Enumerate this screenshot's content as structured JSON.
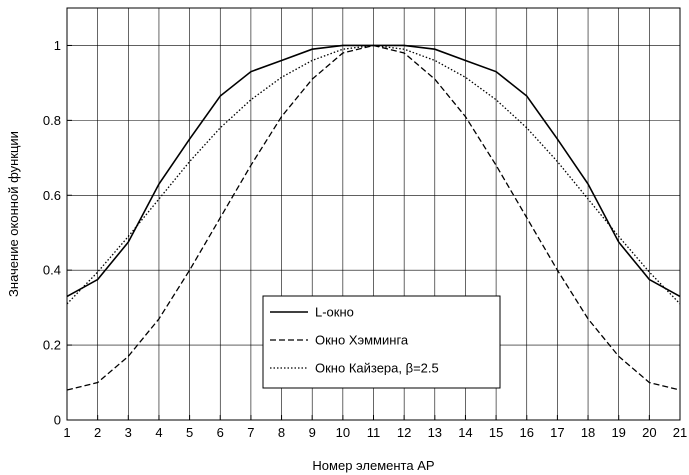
{
  "chart_data": {
    "type": "line",
    "title": "",
    "xlabel": "Номер элемента АР",
    "ylabel": "Значение оконной функции",
    "xlim": [
      1,
      21
    ],
    "ylim": [
      0,
      1.1
    ],
    "xticks": [
      1,
      2,
      3,
      4,
      5,
      6,
      7,
      8,
      9,
      10,
      11,
      12,
      13,
      14,
      15,
      16,
      17,
      18,
      19,
      20,
      21
    ],
    "yticks": [
      0,
      0.2,
      0.4,
      0.6,
      0.8,
      1
    ],
    "ytick_labels": [
      "0",
      "0.2",
      "0.4",
      "0.6",
      "0.8",
      "1"
    ],
    "grid": true,
    "legend_position": "bottom-center",
    "x": [
      1,
      2,
      3,
      4,
      5,
      6,
      7,
      8,
      9,
      10,
      11,
      12,
      13,
      14,
      15,
      16,
      17,
      18,
      19,
      20,
      21
    ],
    "series": [
      {
        "name": "L-окно",
        "style": "solid",
        "values": [
          0.33,
          0.375,
          0.475,
          0.63,
          0.75,
          0.865,
          0.93,
          0.96,
          0.99,
          1.0,
          1.0,
          1.0,
          0.99,
          0.96,
          0.93,
          0.865,
          0.75,
          0.63,
          0.475,
          0.375,
          0.33
        ]
      },
      {
        "name": "Окно Хэмминга",
        "style": "dashed",
        "values": [
          0.08,
          0.1,
          0.17,
          0.27,
          0.4,
          0.54,
          0.68,
          0.81,
          0.91,
          0.98,
          1.0,
          0.98,
          0.91,
          0.81,
          0.68,
          0.54,
          0.4,
          0.27,
          0.17,
          0.1,
          0.08
        ]
      },
      {
        "name": "Окно Кайзера, β=2.5",
        "style": "dotted",
        "values": [
          0.31,
          0.395,
          0.49,
          0.59,
          0.69,
          0.78,
          0.855,
          0.915,
          0.96,
          0.99,
          1.0,
          0.99,
          0.96,
          0.915,
          0.855,
          0.78,
          0.69,
          0.59,
          0.49,
          0.395,
          0.31
        ]
      }
    ]
  }
}
